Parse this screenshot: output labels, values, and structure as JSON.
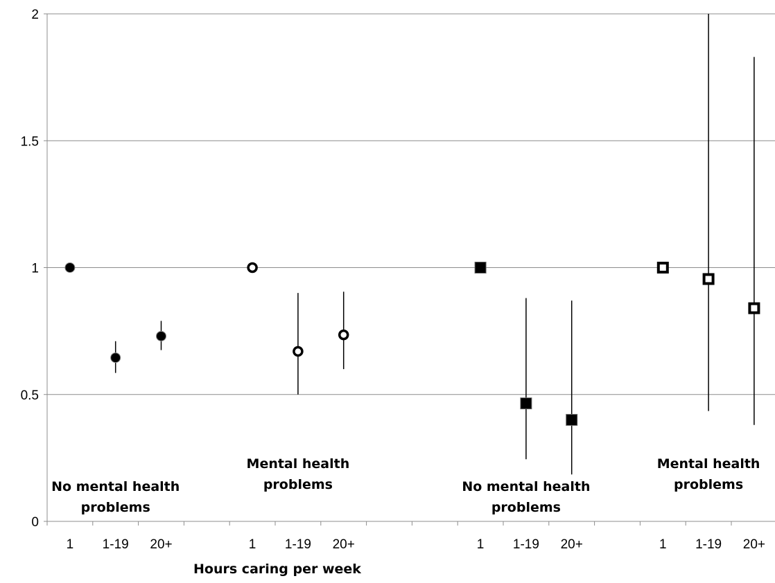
{
  "chart_data": {
    "type": "scatter",
    "xlabel": "Hours caring per week",
    "ylabel": "",
    "ylim": [
      0,
      2
    ],
    "yticks": [
      "0",
      "0.5",
      "1",
      "1.5",
      "2"
    ],
    "grid": true,
    "legend": "none",
    "groups": [
      {
        "label_lines": [
          "No mental health",
          "problems"
        ],
        "marker": "filled-circle",
        "categories": [
          "1",
          "1-19",
          "20+"
        ],
        "points": [
          {
            "x": "1",
            "y": 1.0
          },
          {
            "x": "1-19",
            "y": 0.645,
            "low": 0.585,
            "high": 0.71
          },
          {
            "x": "20+",
            "y": 0.73,
            "low": 0.675,
            "high": 0.79
          }
        ]
      },
      {
        "label_lines": [
          "Mental health",
          "problems"
        ],
        "marker": "open-circle",
        "categories": [
          "1",
          "1-19",
          "20+"
        ],
        "points": [
          {
            "x": "1",
            "y": 1.0
          },
          {
            "x": "1-19",
            "y": 0.67,
            "low": 0.5,
            "high": 0.9
          },
          {
            "x": "20+",
            "y": 0.735,
            "low": 0.6,
            "high": 0.905
          }
        ]
      },
      {
        "label_lines": [
          "No mental health",
          "problems"
        ],
        "marker": "filled-square",
        "categories": [
          "1",
          "1-19",
          "20+"
        ],
        "points": [
          {
            "x": "1",
            "y": 1.0
          },
          {
            "x": "1-19",
            "y": 0.465,
            "low": 0.245,
            "high": 0.88
          },
          {
            "x": "20+",
            "y": 0.4,
            "low": 0.185,
            "high": 0.87
          }
        ]
      },
      {
        "label_lines": [
          "Mental health",
          "problems"
        ],
        "marker": "open-square",
        "categories": [
          "1",
          "1-19",
          "20+"
        ],
        "points": [
          {
            "x": "1",
            "y": 1.0
          },
          {
            "x": "1-19",
            "y": 0.955,
            "low": 0.435,
            "high": 2.0
          },
          {
            "x": "20+",
            "y": 0.84,
            "low": 0.38,
            "high": 1.83
          }
        ]
      }
    ]
  }
}
